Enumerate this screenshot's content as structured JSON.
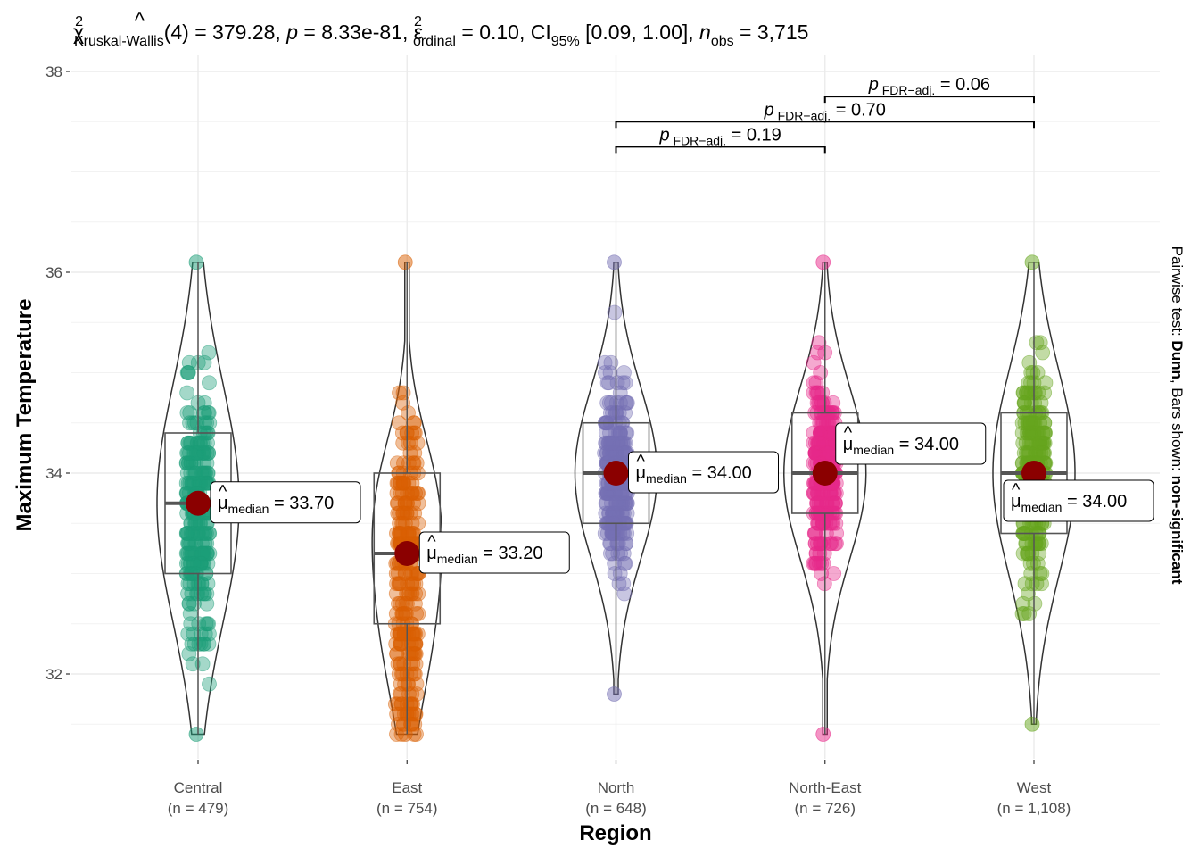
{
  "chart_data": {
    "type": "violin-box-scatter",
    "title": "",
    "subtitle": {
      "test": "Kruskal-Wallis",
      "df": 4,
      "statistic": "379.28",
      "p": "8.33e-81",
      "effect_size_name": "ordinal",
      "effect_size": "0.10",
      "ci_label": "95%",
      "ci": "[0.09, 1.00]",
      "n_obs": "3,715",
      "parts": {
        "chi": "χ",
        "chi_sup": "2",
        "chi_sub": "Kruskal-Wallis",
        "df_text": "(4) = 379.28, ",
        "p_sym": "p",
        "p_text": " = 8.33e-81, ",
        "eps": "ε",
        "eps_hat": "^",
        "eps_sup": "2",
        "eps_sub": "ordinal",
        "eps_text": " = 0.10, CI",
        "ci_sub": "95%",
        "ci_text": " [0.09, 1.00], ",
        "n_sym": "n",
        "n_sub": "obs",
        "n_text": " = 3,715"
      }
    },
    "xlabel": "Region",
    "ylabel": "Maximum Temperature",
    "ylim": [
      31.2,
      38.2
    ],
    "yticks": [
      32,
      34,
      36,
      38
    ],
    "ytick_labels": [
      "32",
      "34",
      "36",
      "38"
    ],
    "grid": true,
    "categories": [
      "Central",
      "East",
      "North",
      "North-East",
      "West"
    ],
    "category_counts": [
      "(n = 479)",
      "(n = 754)",
      "(n = 648)",
      "(n = 726)",
      "(n = 1,108)"
    ],
    "colors": [
      "#1B9E77",
      "#D95F02",
      "#7570B3",
      "#E7298A",
      "#66A61E"
    ],
    "median_point_color": "#8B0000",
    "series": [
      {
        "name": "Central",
        "n": 479,
        "median": 33.7,
        "q1": 33.0,
        "q3": 34.4,
        "min": 31.4,
        "max": 36.1
      },
      {
        "name": "East",
        "n": 754,
        "median": 33.2,
        "q1": 32.5,
        "q3": 34.0,
        "min": 31.4,
        "max": 36.1
      },
      {
        "name": "North",
        "n": 648,
        "median": 34.0,
        "q1": 33.5,
        "q3": 34.5,
        "min": 31.8,
        "max": 36.1
      },
      {
        "name": "North-East",
        "n": 726,
        "median": 34.0,
        "q1": 33.6,
        "q3": 34.6,
        "min": 31.4,
        "max": 36.1
      },
      {
        "name": "West",
        "n": 1108,
        "median": 34.0,
        "q1": 33.4,
        "q3": 34.6,
        "min": 31.5,
        "max": 36.1
      }
    ],
    "median_labels": [
      {
        "symbol": "μ",
        "sub": "median",
        "value": " = 33.70",
        "placement": "right"
      },
      {
        "symbol": "μ",
        "sub": "median",
        "value": " = 33.20",
        "placement": "right"
      },
      {
        "symbol": "μ",
        "sub": "median",
        "value": " = 34.00",
        "placement": "right"
      },
      {
        "symbol": "μ",
        "sub": "median",
        "value": " = 34.00",
        "placement": "upper-right"
      },
      {
        "symbol": "μ",
        "sub": "median",
        "value": " = 34.00",
        "placement": "lower-right"
      }
    ],
    "pairwise": [
      {
        "group1": "North",
        "group2": "North-East",
        "p_sym": "p",
        "p_sub": "FDR−adj.",
        "value": " = 0.19",
        "y": 37.25
      },
      {
        "group1": "North",
        "group2": "West",
        "p_sym": "p",
        "p_sub": "FDR−adj.",
        "value": " = 0.70",
        "y": 37.5
      },
      {
        "group1": "North-East",
        "group2": "West",
        "p_sym": "p",
        "p_sub": "FDR−adj.",
        "value": " = 0.06",
        "y": 37.75
      }
    ],
    "caption": {
      "prefix": "Pairwise test: ",
      "test": "Dunn",
      "middle": ", Bars shown: ",
      "shown": "non-significant"
    }
  }
}
